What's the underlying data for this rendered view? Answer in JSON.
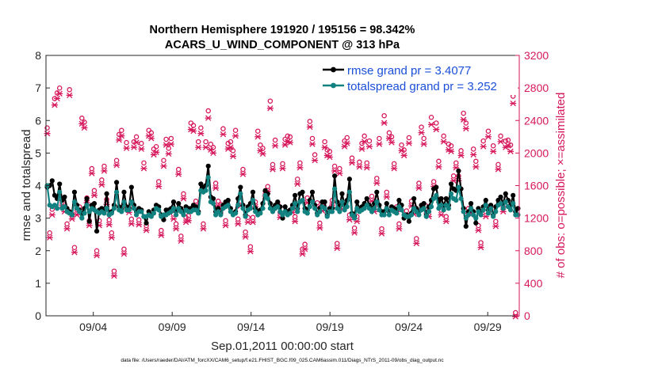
{
  "chart_data": {
    "type": "line",
    "title_line1": "Northern Hemisphere 191920 / 195156 = 98.342%",
    "title_line2": "ACARS_U_WIND_COMPONENT @ 313 hPa",
    "xlabel": "Sep.01,2011 00:00:00 start",
    "ylabel_left": "rmse and totalspread",
    "ylabel_right": "# of obs: o=possible; ×=assimilated",
    "footer": "data file: /Users/raeder/DAI/ATM_forcXX/CAM6_setup/f.e21.FHIST_BGC.f09_025.CAM6assim.011/Diags_NTrS_2011-09/obs_diag_output.nc",
    "xlim": [
      1,
      31
    ],
    "ylim_left": [
      0,
      8
    ],
    "ylim_right": [
      0,
      3200
    ],
    "x_ticks": [
      {
        "label": "09/04",
        "day": 4
      },
      {
        "label": "09/09",
        "day": 9
      },
      {
        "label": "09/14",
        "day": 14
      },
      {
        "label": "09/19",
        "day": 19
      },
      {
        "label": "09/24",
        "day": 24
      },
      {
        "label": "09/29",
        "day": 29
      }
    ],
    "y_ticks_left": [
      "0",
      "1",
      "2",
      "3",
      "4",
      "5",
      "6",
      "7",
      "8"
    ],
    "y_ticks_right": [
      "0",
      "400",
      "800",
      "1200",
      "1600",
      "2000",
      "2400",
      "2800",
      "3200"
    ],
    "legend": [
      {
        "label": "rmse grand pr = 3.4077",
        "color": "#000000"
      },
      {
        "label": "totalspread grand pr = 3.252",
        "color": "#128280"
      }
    ],
    "colors": {
      "rmse": "#000000",
      "spread": "#128280",
      "obs": "#d6175b",
      "axis_right": "#d6175b"
    },
    "series": [
      {
        "name": "rmse",
        "values": [
          3.95,
          4.0,
          4.15,
          3.7,
          3.6,
          4.05,
          3.55,
          3.65,
          3.3,
          3.2,
          3.1,
          3.8,
          3.4,
          3.25,
          3.15,
          3.3,
          3.6,
          2.9,
          3.4,
          3.45,
          2.6,
          3.25,
          3.3,
          3.2,
          3.75,
          3.1,
          3.2,
          3.4,
          4.1,
          3.35,
          3.3,
          3.8,
          3.35,
          3.3,
          3.95,
          3.4,
          3.2,
          3.3,
          3.25,
          3.05,
          2.85,
          3.2,
          3.1,
          3.25,
          3.4,
          3.35,
          3.1,
          2.95,
          3.25,
          3.25,
          3.3,
          3.5,
          3.2,
          3.45,
          3.3,
          3.2,
          3.35,
          3.3,
          3.3,
          3.4,
          3.35,
          3.2,
          4.05,
          3.95,
          4.0,
          4.6,
          3.65,
          3.6,
          3.2,
          3.3,
          3.15,
          3.4,
          3.5,
          3.55,
          3.3,
          3.15,
          3.2,
          3.6,
          3.95,
          3.4,
          3.1,
          3.35,
          3.45,
          3.8,
          3.3,
          3.2,
          3.25,
          3.45,
          3.85,
          3.75,
          3.45,
          3.3,
          3.4,
          3.5,
          3.35,
          3.0,
          3.35,
          3.2,
          3.25,
          3.4,
          3.7,
          3.3,
          3.75,
          3.8,
          3.3,
          3.25,
          3.55,
          3.8,
          3.4,
          3.15,
          3.3,
          3.5,
          3.5,
          3.1,
          3.3,
          3.3,
          4.3,
          3.5,
          3.35,
          3.75,
          3.4,
          3.55,
          4.2,
          3.15,
          3.05,
          3.5,
          3.3,
          3.35,
          3.45,
          3.6,
          3.4,
          3.3,
          3.45,
          3.8,
          3.4,
          3.2,
          3.2,
          3.45,
          3.2,
          3.35,
          3.3,
          3.25,
          3.55,
          3.4,
          3.0,
          3.1,
          2.9,
          3.15,
          3.6,
          3.3,
          3.2,
          3.4,
          3.45,
          3.1,
          3.35,
          3.55,
          3.9,
          3.95,
          3.5,
          3.6,
          3.4,
          3.6,
          3.4,
          4.05,
          3.9,
          3.85,
          4.45,
          3.9,
          3.3,
          2.75,
          3.2,
          3.45,
          3.2,
          2.85,
          3.3,
          3.2,
          3.35,
          3.55,
          3.25,
          3.4,
          3.1,
          3.35,
          3.55,
          3.65,
          3.45,
          3.75,
          3.55,
          3.4,
          3.7,
          3.2,
          3.3
        ]
      },
      {
        "name": "totalspread",
        "values": [
          4.0,
          3.4,
          3.35,
          3.4,
          3.3,
          3.8,
          3.3,
          3.35,
          3.2,
          3.15,
          3.1,
          3.5,
          3.3,
          3.2,
          3.0,
          3.15,
          3.4,
          3.2,
          3.3,
          3.25,
          3.2,
          3.15,
          3.2,
          3.15,
          3.3,
          3.1,
          3.15,
          3.3,
          3.8,
          3.25,
          3.2,
          3.5,
          3.25,
          3.25,
          3.5,
          3.3,
          3.1,
          3.2,
          3.2,
          3.05,
          3.05,
          3.1,
          3.05,
          3.15,
          3.3,
          3.25,
          3.05,
          3.1,
          3.1,
          3.15,
          3.2,
          3.3,
          3.1,
          3.3,
          3.2,
          3.1,
          3.25,
          3.2,
          3.2,
          3.25,
          3.25,
          3.15,
          3.85,
          3.8,
          3.85,
          4.25,
          3.5,
          3.45,
          3.1,
          3.2,
          3.1,
          3.3,
          3.35,
          3.4,
          3.2,
          3.1,
          3.15,
          3.4,
          3.75,
          3.3,
          3.05,
          3.25,
          3.3,
          3.55,
          3.2,
          3.1,
          3.15,
          3.3,
          3.7,
          3.6,
          3.3,
          3.2,
          3.3,
          3.35,
          3.2,
          3.1,
          3.2,
          3.1,
          3.15,
          3.3,
          3.45,
          3.2,
          3.5,
          3.55,
          3.2,
          3.15,
          3.35,
          3.5,
          3.3,
          3.1,
          3.2,
          3.35,
          3.3,
          3.05,
          3.2,
          3.2,
          3.9,
          3.3,
          3.2,
          3.5,
          3.25,
          3.35,
          3.8,
          3.1,
          3.0,
          3.3,
          3.2,
          3.25,
          3.3,
          3.4,
          3.3,
          3.2,
          3.3,
          3.5,
          3.25,
          3.1,
          3.1,
          3.3,
          3.1,
          3.25,
          3.2,
          3.15,
          3.35,
          3.25,
          3.1,
          3.05,
          3.05,
          3.1,
          3.3,
          3.2,
          3.1,
          3.25,
          3.3,
          3.05,
          3.2,
          3.35,
          3.6,
          3.7,
          3.3,
          3.4,
          3.25,
          3.4,
          3.3,
          3.75,
          3.6,
          3.55,
          3.95,
          3.6,
          3.2,
          3.0,
          3.1,
          3.3,
          3.1,
          3.0,
          3.2,
          3.1,
          3.25,
          3.4,
          3.15,
          3.3,
          3.05,
          3.2,
          3.4,
          3.45,
          3.3,
          3.5,
          3.35,
          3.25,
          3.45,
          3.1,
          3.1
        ]
      },
      {
        "name": "obs_possible",
        "values": [
          2270,
          980,
          1270,
          2630,
          2700,
          2760,
          1380,
          1300,
          1090,
          2740,
          1210,
          800,
          1260,
          1300,
          2390,
          2340,
          1410,
          1130,
          1770,
          1500,
          760,
          1130,
          1630,
          1800,
          1390,
          1140,
          980,
          510,
          1870,
          2190,
          2240,
          780,
          2090,
          1290,
          1150,
          2100,
          2160,
          1140,
          2080,
          1840,
          1070,
          2240,
          2210,
          2010,
          2040,
          1610,
          1010,
          1870,
          2130,
          2020,
          2140,
          1210,
          1090,
          1760,
          940,
          1460,
          1170,
          1190,
          2330,
          2300,
          1370,
          2100,
          2270,
          1090,
          2100,
          2480,
          2070,
          2030,
          1590,
          1370,
          1330,
          2260,
          1130,
          2080,
          2100,
          1990,
          2240,
          1150,
          1370,
          1760,
          990,
          1170,
          810,
          1170,
          1360,
          2230,
          2060,
          2020,
          1490,
          1550,
          2600,
          1820,
          2120,
          1340,
          1230,
          1830,
          2130,
          2170,
          2160,
          1290,
          1180,
          1640,
          1840,
          780,
          840,
          1410,
          2350,
          2140,
          1940,
          1350,
          1100,
          1310,
          2100,
          2000,
          1980,
          1380,
          1800,
          850,
          1770,
          1330,
          2110,
          2150,
          1200,
          1900,
          1040,
          1180,
          1850,
          2080,
          2170,
          1840,
          2110,
          1430,
          1300,
          1650,
          2140,
          1030,
          2420,
          1480,
          2210,
          2160,
          1830,
          1300,
          1090,
          2060,
          2000,
          1250,
          2150,
          1370,
          1270,
          910,
          1590,
          2280,
          2140,
          1310,
          1240,
          2400,
          1610,
          2330,
          1860,
          1260,
          2170,
          1180,
          2070,
          2050,
          1680,
          1840,
          1680,
          1990,
          2450,
          2330,
          1280,
          1260,
          2010,
          1860,
          1070,
          860,
          2110,
          1240,
          2230,
          1300,
          2050,
          1120,
          1820,
          2170,
          1300,
          2110,
          2120,
          2060,
          2660,
          0
        ]
      },
      {
        "name": "obs_assimilated",
        "values": [
          2250,
          970,
          1250,
          2600,
          2680,
          2740,
          1370,
          1290,
          1080,
          2720,
          1200,
          790,
          1250,
          1290,
          2370,
          2320,
          1400,
          1120,
          1760,
          1490,
          750,
          1120,
          1620,
          1790,
          1380,
          1130,
          970,
          500,
          1860,
          2170,
          2220,
          770,
          2070,
          1280,
          1140,
          2080,
          2140,
          1130,
          2060,
          1820,
          1060,
          2220,
          2190,
          1990,
          2020,
          1600,
          1000,
          1850,
          2110,
          2000,
          2120,
          1200,
          1080,
          1750,
          930,
          1450,
          1160,
          1180,
          2300,
          2280,
          1360,
          2080,
          2250,
          1080,
          2080,
          2440,
          2050,
          2010,
          1580,
          1360,
          1320,
          2240,
          1120,
          2060,
          2080,
          1970,
          2220,
          1140,
          1360,
          1750,
          980,
          1160,
          800,
          1160,
          1350,
          2210,
          2040,
          2000,
          1480,
          1540,
          2560,
          1810,
          2100,
          1330,
          1220,
          1820,
          2110,
          2150,
          2140,
          1280,
          1170,
          1630,
          1830,
          770,
          830,
          1400,
          2330,
          2120,
          1920,
          1340,
          1090,
          1300,
          2080,
          1980,
          1960,
          1370,
          1790,
          840,
          1760,
          1320,
          2090,
          2130,
          1190,
          1890,
          1030,
          1170,
          1840,
          2060,
          2150,
          1830,
          2090,
          1420,
          1290,
          1640,
          2120,
          1020,
          2380,
          1470,
          2190,
          2140,
          1820,
          1290,
          1080,
          2040,
          1980,
          1240,
          2130,
          1360,
          1260,
          900,
          1580,
          2260,
          2120,
          1300,
          1230,
          2360,
          1600,
          2300,
          1840,
          1250,
          2150,
          1170,
          2050,
          2030,
          1670,
          1830,
          1670,
          1980,
          2420,
          2310,
          1270,
          1250,
          1990,
          1840,
          1060,
          850,
          2090,
          1230,
          2210,
          1290,
          2030,
          1110,
          1810,
          2150,
          1290,
          2080,
          2100,
          2030,
          2620,
          0
        ]
      }
    ]
  }
}
